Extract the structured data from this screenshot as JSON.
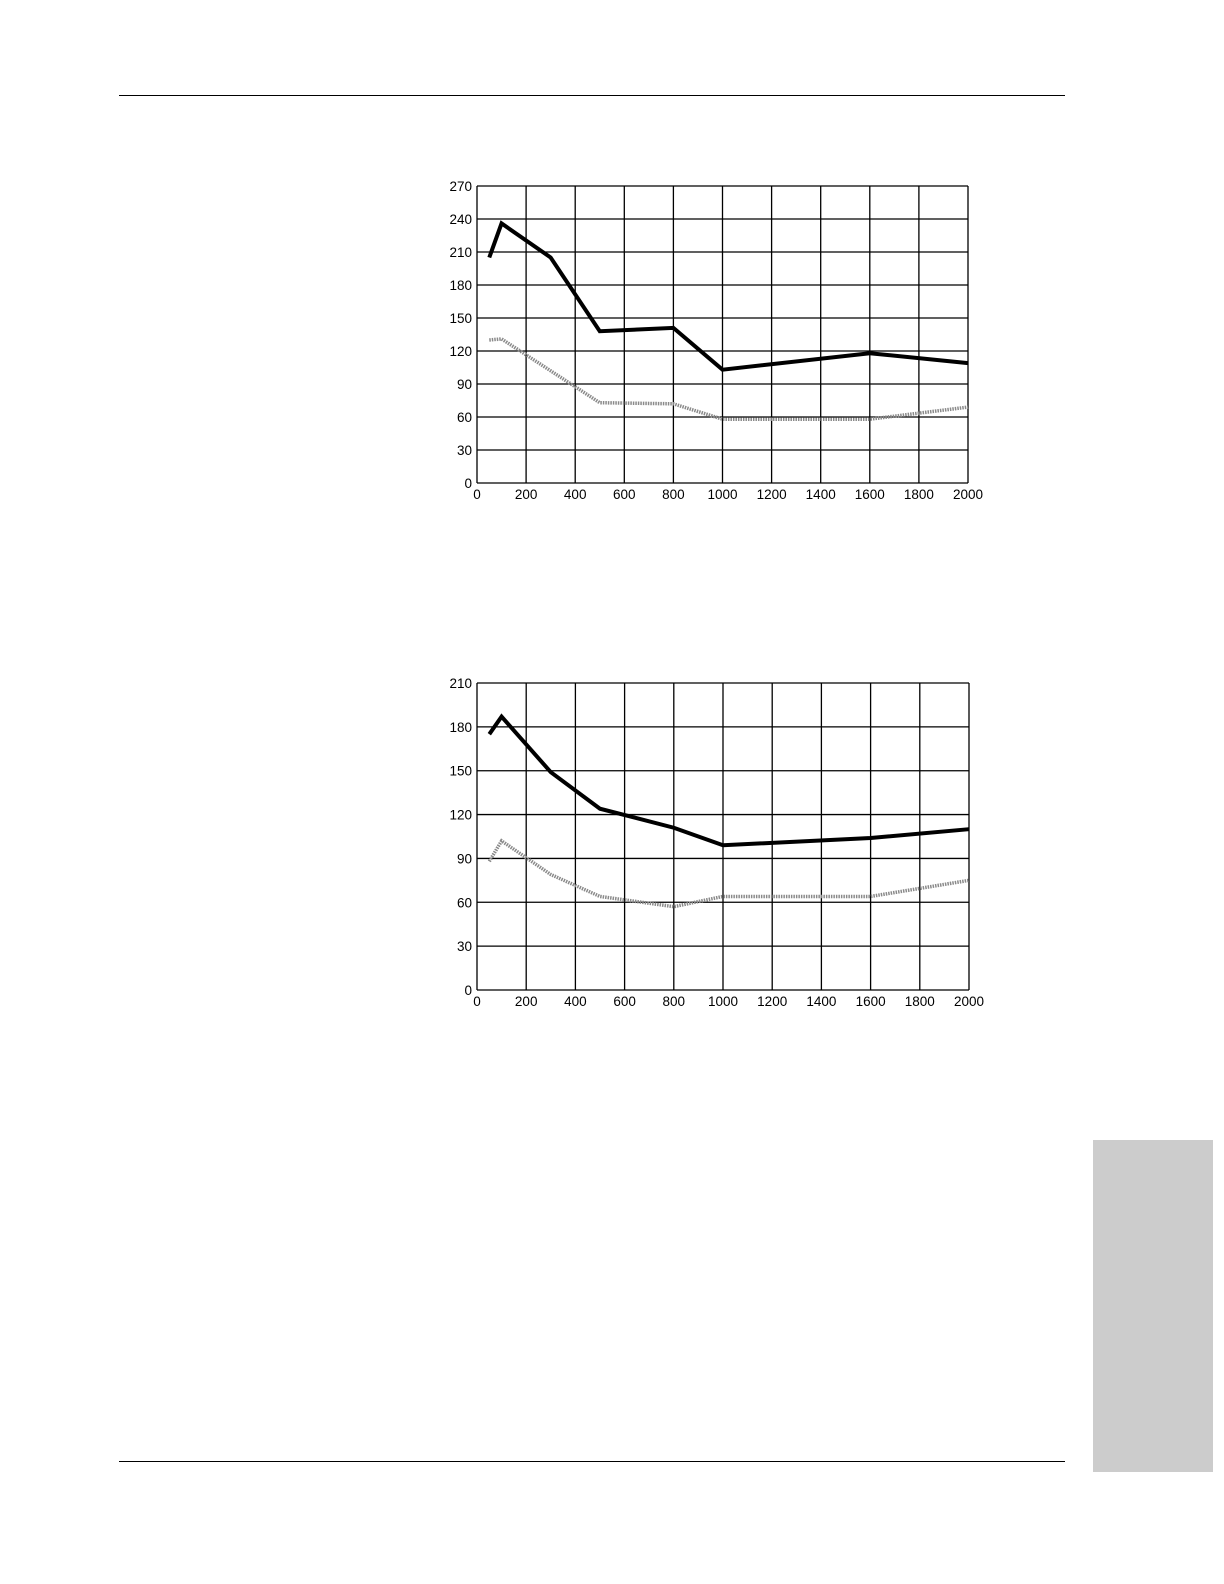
{
  "colors": {
    "dark_series": "#000000",
    "light_series": "#8a8a8a",
    "grid": "#000000",
    "side_tab": "#cccccc"
  },
  "chart_data": [
    {
      "type": "line",
      "grid": true,
      "xlim": [
        0,
        2000
      ],
      "ylim": [
        0,
        270
      ],
      "xticks": [
        0,
        200,
        400,
        600,
        800,
        1000,
        1200,
        1400,
        1600,
        1800,
        2000
      ],
      "yticks": [
        0,
        30,
        60,
        90,
        120,
        150,
        180,
        210,
        240,
        270
      ],
      "series": [
        {
          "style": "solid-black",
          "x": [
            50,
            100,
            300,
            500,
            800,
            1000,
            1600,
            2000
          ],
          "y": [
            205,
            236,
            205,
            138,
            141,
            103,
            118,
            109
          ]
        },
        {
          "style": "gray-dotted",
          "x": [
            50,
            100,
            500,
            800,
            1000,
            1600,
            2000
          ],
          "y": [
            130,
            131,
            73,
            72,
            58,
            58,
            69
          ]
        }
      ]
    },
    {
      "type": "line",
      "grid": true,
      "xlim": [
        0,
        2000
      ],
      "ylim": [
        0,
        210
      ],
      "xticks": [
        0,
        200,
        400,
        600,
        800,
        1000,
        1200,
        1400,
        1600,
        1800,
        2000
      ],
      "yticks": [
        0,
        30,
        60,
        90,
        120,
        150,
        180,
        210
      ],
      "series": [
        {
          "style": "solid-black",
          "x": [
            50,
            100,
            300,
            500,
            800,
            1000,
            1600,
            2000
          ],
          "y": [
            175,
            187,
            149,
            124,
            111,
            99,
            104,
            110
          ]
        },
        {
          "style": "gray-dotted",
          "x": [
            50,
            100,
            300,
            500,
            800,
            1000,
            1600,
            2000
          ],
          "y": [
            88,
            102,
            79,
            64,
            57,
            64,
            64,
            75
          ]
        }
      ]
    }
  ]
}
